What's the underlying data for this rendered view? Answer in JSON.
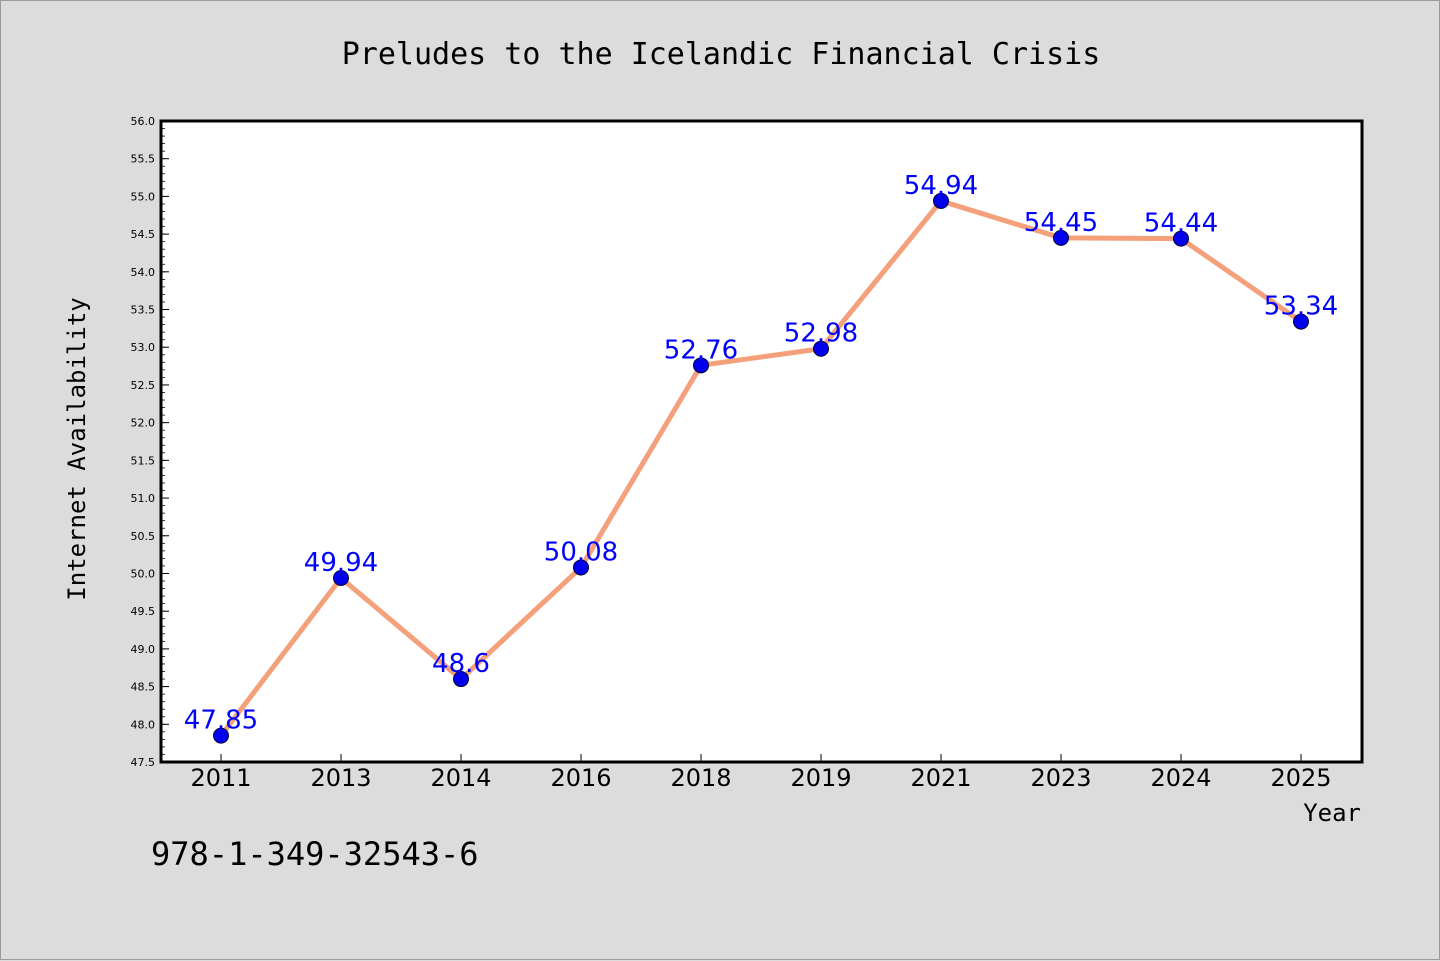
{
  "chart_data": {
    "type": "line",
    "title": "Preludes to the Icelandic Financial Crisis",
    "xlabel": "Year",
    "ylabel": "Internet Availability",
    "categories": [
      "2011",
      "2013",
      "2014",
      "2016",
      "2018",
      "2019",
      "2021",
      "2023",
      "2024",
      "2025"
    ],
    "series": [
      {
        "values": [
          47.85,
          49.94,
          48.6,
          50.08,
          52.76,
          52.98,
          54.94,
          54.45,
          54.44,
          53.34
        ],
        "line_color": "#f4a07a",
        "marker_color": "#0000ee",
        "label_color": "#0000ff"
      }
    ],
    "data_labels": [
      "47.85",
      "49.94",
      "48.6",
      "50.08",
      "52.76",
      "52.98",
      "54.94",
      "54.45",
      "54.44",
      "53.34"
    ],
    "ylim": [
      47.5,
      56.0
    ],
    "yticks": [
      "47.5",
      "48.0",
      "48.5",
      "49.0",
      "49.5",
      "50.0",
      "50.5",
      "51.0",
      "51.5",
      "52.0",
      "52.5",
      "53.0",
      "53.5",
      "54.0",
      "54.5",
      "55.0",
      "55.5",
      "56.0"
    ],
    "grid": false,
    "legend": "none"
  },
  "footer": {
    "isbn": "978-1-349-32543-6"
  }
}
